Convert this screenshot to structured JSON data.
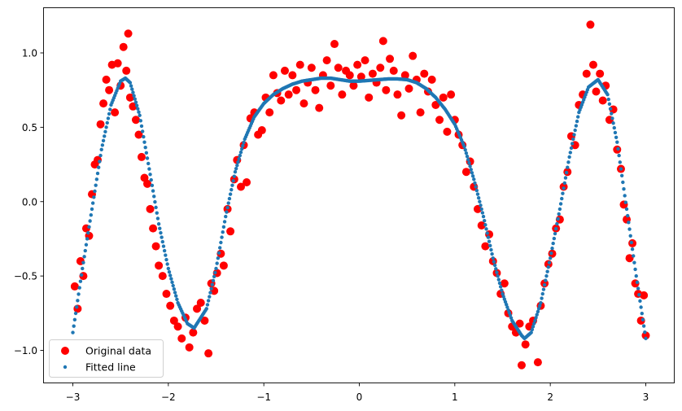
{
  "chart_data": {
    "type": "scatter",
    "title": "",
    "xlabel": "",
    "ylabel": "",
    "xlim": [
      -3.3,
      3.3
    ],
    "ylim": [
      -1.22,
      1.31
    ],
    "grid": false,
    "legend_placement": "lower-left",
    "x_ticks": [
      -3,
      -2,
      -1,
      0,
      1,
      2,
      3
    ],
    "x_tick_labels": [
      "−3",
      "−2",
      "−1",
      "0",
      "1",
      "2",
      "3"
    ],
    "y_ticks": [
      -1.0,
      -0.5,
      0.0,
      0.5,
      1.0
    ],
    "y_tick_labels": [
      "−1.0",
      "−0.5",
      "0.0",
      "0.5",
      "1.0"
    ],
    "series": [
      {
        "name": "Original data",
        "marker": "circle",
        "color": "#ff0000",
        "points": [
          [
            -2.98,
            -0.57
          ],
          [
            -2.95,
            -0.72
          ],
          [
            -2.92,
            -0.4
          ],
          [
            -2.89,
            -0.5
          ],
          [
            -2.86,
            -0.18
          ],
          [
            -2.83,
            -0.23
          ],
          [
            -2.8,
            0.05
          ],
          [
            -2.77,
            0.25
          ],
          [
            -2.74,
            0.28
          ],
          [
            -2.71,
            0.52
          ],
          [
            -2.68,
            0.66
          ],
          [
            -2.65,
            0.82
          ],
          [
            -2.62,
            0.75
          ],
          [
            -2.59,
            0.92
          ],
          [
            -2.56,
            0.6
          ],
          [
            -2.53,
            0.93
          ],
          [
            -2.5,
            0.78
          ],
          [
            -2.47,
            1.04
          ],
          [
            -2.44,
            0.88
          ],
          [
            -2.42,
            1.13
          ],
          [
            -2.4,
            0.7
          ],
          [
            -2.37,
            0.64
          ],
          [
            -2.34,
            0.55
          ],
          [
            -2.31,
            0.45
          ],
          [
            -2.28,
            0.3
          ],
          [
            -2.25,
            0.16
          ],
          [
            -2.22,
            0.12
          ],
          [
            -2.19,
            -0.05
          ],
          [
            -2.16,
            -0.18
          ],
          [
            -2.13,
            -0.3
          ],
          [
            -2.1,
            -0.43
          ],
          [
            -2.06,
            -0.5
          ],
          [
            -2.02,
            -0.62
          ],
          [
            -1.98,
            -0.7
          ],
          [
            -1.94,
            -0.8
          ],
          [
            -1.9,
            -0.84
          ],
          [
            -1.86,
            -0.92
          ],
          [
            -1.82,
            -0.78
          ],
          [
            -1.78,
            -0.98
          ],
          [
            -1.74,
            -0.88
          ],
          [
            -1.7,
            -0.72
          ],
          [
            -1.66,
            -0.68
          ],
          [
            -1.62,
            -0.8
          ],
          [
            -1.58,
            -1.02
          ],
          [
            -1.55,
            -0.55
          ],
          [
            -1.52,
            -0.6
          ],
          [
            -1.49,
            -0.48
          ],
          [
            -1.45,
            -0.35
          ],
          [
            -1.42,
            -0.43
          ],
          [
            -1.38,
            -0.05
          ],
          [
            -1.35,
            -0.2
          ],
          [
            -1.31,
            0.15
          ],
          [
            -1.28,
            0.28
          ],
          [
            -1.24,
            0.1
          ],
          [
            -1.21,
            0.38
          ],
          [
            -1.18,
            0.13
          ],
          [
            -1.14,
            0.56
          ],
          [
            -1.1,
            0.6
          ],
          [
            -1.06,
            0.45
          ],
          [
            -1.02,
            0.48
          ],
          [
            -0.98,
            0.7
          ],
          [
            -0.94,
            0.6
          ],
          [
            -0.9,
            0.85
          ],
          [
            -0.86,
            0.73
          ],
          [
            -0.82,
            0.68
          ],
          [
            -0.78,
            0.88
          ],
          [
            -0.74,
            0.72
          ],
          [
            -0.7,
            0.85
          ],
          [
            -0.66,
            0.75
          ],
          [
            -0.62,
            0.92
          ],
          [
            -0.58,
            0.66
          ],
          [
            -0.54,
            0.8
          ],
          [
            -0.5,
            0.9
          ],
          [
            -0.46,
            0.75
          ],
          [
            -0.42,
            0.63
          ],
          [
            -0.38,
            0.85
          ],
          [
            -0.34,
            0.95
          ],
          [
            -0.3,
            0.78
          ],
          [
            -0.26,
            1.06
          ],
          [
            -0.22,
            0.9
          ],
          [
            -0.18,
            0.72
          ],
          [
            -0.14,
            0.88
          ],
          [
            -0.1,
            0.85
          ],
          [
            -0.06,
            0.78
          ],
          [
            -0.02,
            0.92
          ],
          [
            0.02,
            0.84
          ],
          [
            0.06,
            0.95
          ],
          [
            0.1,
            0.7
          ],
          [
            0.14,
            0.86
          ],
          [
            0.18,
            0.8
          ],
          [
            0.22,
            0.9
          ],
          [
            0.25,
            1.08
          ],
          [
            0.28,
            0.75
          ],
          [
            0.32,
            0.96
          ],
          [
            0.36,
            0.88
          ],
          [
            0.4,
            0.72
          ],
          [
            0.44,
            0.58
          ],
          [
            0.48,
            0.85
          ],
          [
            0.52,
            0.76
          ],
          [
            0.56,
            0.98
          ],
          [
            0.6,
            0.82
          ],
          [
            0.64,
            0.6
          ],
          [
            0.68,
            0.86
          ],
          [
            0.72,
            0.74
          ],
          [
            0.76,
            0.82
          ],
          [
            0.8,
            0.65
          ],
          [
            0.84,
            0.55
          ],
          [
            0.88,
            0.7
          ],
          [
            0.92,
            0.47
          ],
          [
            0.96,
            0.72
          ],
          [
            1.0,
            0.55
          ],
          [
            1.04,
            0.45
          ],
          [
            1.08,
            0.38
          ],
          [
            1.12,
            0.2
          ],
          [
            1.16,
            0.27
          ],
          [
            1.2,
            0.1
          ],
          [
            1.24,
            -0.05
          ],
          [
            1.28,
            -0.16
          ],
          [
            1.32,
            -0.3
          ],
          [
            1.36,
            -0.22
          ],
          [
            1.4,
            -0.4
          ],
          [
            1.44,
            -0.48
          ],
          [
            1.48,
            -0.62
          ],
          [
            1.52,
            -0.55
          ],
          [
            1.56,
            -0.75
          ],
          [
            1.6,
            -0.84
          ],
          [
            1.64,
            -0.88
          ],
          [
            1.68,
            -0.82
          ],
          [
            1.7,
            -1.1
          ],
          [
            1.74,
            -0.96
          ],
          [
            1.78,
            -0.84
          ],
          [
            1.82,
            -0.8
          ],
          [
            1.87,
            -1.08
          ],
          [
            1.9,
            -0.7
          ],
          [
            1.94,
            -0.55
          ],
          [
            1.98,
            -0.42
          ],
          [
            2.02,
            -0.35
          ],
          [
            2.06,
            -0.18
          ],
          [
            2.1,
            -0.12
          ],
          [
            2.14,
            0.1
          ],
          [
            2.18,
            0.2
          ],
          [
            2.22,
            0.44
          ],
          [
            2.26,
            0.38
          ],
          [
            2.3,
            0.65
          ],
          [
            2.34,
            0.72
          ],
          [
            2.38,
            0.86
          ],
          [
            2.42,
            1.19
          ],
          [
            2.45,
            0.92
          ],
          [
            2.48,
            0.74
          ],
          [
            2.52,
            0.86
          ],
          [
            2.55,
            0.68
          ],
          [
            2.58,
            0.78
          ],
          [
            2.62,
            0.55
          ],
          [
            2.66,
            0.62
          ],
          [
            2.7,
            0.35
          ],
          [
            2.74,
            0.22
          ],
          [
            2.77,
            -0.02
          ],
          [
            2.8,
            -0.12
          ],
          [
            2.83,
            -0.38
          ],
          [
            2.86,
            -0.28
          ],
          [
            2.89,
            -0.55
          ],
          [
            2.92,
            -0.62
          ],
          [
            2.95,
            -0.8
          ],
          [
            2.98,
            -0.63
          ],
          [
            3.0,
            -0.9
          ]
        ]
      },
      {
        "name": "Fitted line",
        "marker": "point",
        "color": "#1f77b4",
        "x": [
          -3.0,
          -2.9,
          -2.8,
          -2.7,
          -2.6,
          -2.5,
          -2.45,
          -2.4,
          -2.3,
          -2.2,
          -2.1,
          -2.0,
          -1.9,
          -1.8,
          -1.73,
          -1.6,
          -1.5,
          -1.4,
          -1.3,
          -1.2,
          -1.1,
          -1.0,
          -0.9,
          -0.8,
          -0.7,
          -0.6,
          -0.5,
          -0.4,
          -0.3,
          -0.2,
          -0.1,
          0.0,
          0.1,
          0.2,
          0.3,
          0.4,
          0.5,
          0.6,
          0.7,
          0.8,
          0.9,
          1.0,
          1.1,
          1.2,
          1.3,
          1.4,
          1.5,
          1.6,
          1.7,
          1.73,
          1.8,
          1.9,
          2.0,
          2.1,
          2.2,
          2.3,
          2.4,
          2.5,
          2.6,
          2.7,
          2.8,
          2.9,
          3.0
        ],
        "y": [
          -0.88,
          -0.45,
          -0.05,
          0.35,
          0.65,
          0.81,
          0.83,
          0.8,
          0.58,
          0.22,
          -0.15,
          -0.45,
          -0.68,
          -0.82,
          -0.85,
          -0.72,
          -0.45,
          -0.1,
          0.2,
          0.42,
          0.57,
          0.66,
          0.72,
          0.76,
          0.79,
          0.81,
          0.82,
          0.83,
          0.83,
          0.82,
          0.81,
          0.81,
          0.815,
          0.82,
          0.825,
          0.825,
          0.82,
          0.8,
          0.76,
          0.7,
          0.62,
          0.52,
          0.37,
          0.15,
          -0.1,
          -0.38,
          -0.62,
          -0.8,
          -0.9,
          -0.92,
          -0.88,
          -0.68,
          -0.38,
          -0.05,
          0.3,
          0.6,
          0.77,
          0.82,
          0.72,
          0.4,
          -0.05,
          -0.5,
          -0.92
        ]
      }
    ],
    "legend": [
      "Original data",
      "Fitted line"
    ]
  }
}
